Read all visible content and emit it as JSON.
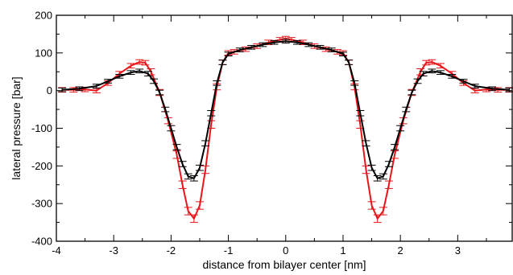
{
  "chart_data": {
    "type": "line",
    "title": "",
    "xlabel": "distance from bilayer center [nm]",
    "ylabel": "lateral pressure [bar]",
    "xlim": [
      -4,
      3.95
    ],
    "ylim": [
      -400,
      200
    ],
    "xticks": [
      -4,
      -3,
      -2,
      -1,
      0,
      1,
      2,
      3
    ],
    "xtick_labels": [
      "-4",
      "-3",
      "-2",
      "-1",
      "0",
      "1",
      "2",
      "3"
    ],
    "yticks": [
      -400,
      -300,
      -200,
      -100,
      0,
      100,
      200
    ],
    "ytick_labels": [
      "-400",
      "-300",
      "-200",
      "-100",
      "0",
      "100",
      "200"
    ],
    "grid": false,
    "legend": "none",
    "error_bars": true,
    "series": [
      {
        "color": "#e8161b",
        "x": [
          -3.9,
          -3.7,
          -3.5,
          -3.3,
          -3.1,
          -2.9,
          -2.7,
          -2.55,
          -2.45,
          -2.35,
          -2.2,
          -2.05,
          -1.9,
          -1.8,
          -1.7,
          -1.6,
          -1.5,
          -1.4,
          -1.3,
          -1.2,
          -1.1,
          -1.0,
          -0.9,
          -0.7,
          -0.5,
          -0.3,
          -0.1,
          0.0,
          0.1,
          0.3,
          0.5,
          0.7,
          0.9,
          1.0,
          1.1,
          1.2,
          1.3,
          1.4,
          1.5,
          1.6,
          1.7,
          1.8,
          1.9,
          2.05,
          2.2,
          2.35,
          2.45,
          2.55,
          2.7,
          2.9,
          3.1,
          3.3,
          3.5,
          3.7,
          3.9
        ],
        "y": [
          2,
          2,
          3,
          0,
          20,
          45,
          66,
          76,
          74,
          50,
          -5,
          -80,
          -170,
          -250,
          -320,
          -340,
          -305,
          -210,
          -90,
          10,
          75,
          100,
          103,
          110,
          118,
          128,
          135,
          138,
          135,
          128,
          118,
          110,
          103,
          100,
          75,
          10,
          -90,
          -210,
          -305,
          -340,
          -320,
          -250,
          -170,
          -80,
          -5,
          50,
          74,
          76,
          66,
          45,
          20,
          0,
          3,
          2,
          2
        ],
        "err": [
          6,
          6,
          6,
          6,
          6,
          6,
          6,
          6,
          6,
          8,
          8,
          8,
          10,
          10,
          10,
          10,
          10,
          10,
          10,
          8,
          6,
          6,
          6,
          6,
          6,
          6,
          6,
          6,
          6,
          6,
          6,
          6,
          6,
          6,
          6,
          8,
          10,
          10,
          10,
          10,
          10,
          10,
          10,
          8,
          8,
          8,
          6,
          6,
          6,
          6,
          6,
          6,
          6,
          6,
          6
        ]
      },
      {
        "color": "#000000",
        "x": [
          -3.9,
          -3.6,
          -3.3,
          -3.1,
          -2.9,
          -2.7,
          -2.55,
          -2.4,
          -2.3,
          -2.2,
          -2.1,
          -2.0,
          -1.9,
          -1.8,
          -1.7,
          -1.6,
          -1.5,
          -1.4,
          -1.3,
          -1.2,
          -1.1,
          -1.0,
          -0.8,
          -0.6,
          -0.4,
          -0.2,
          0.0,
          0.2,
          0.4,
          0.6,
          0.8,
          1.0,
          1.1,
          1.2,
          1.3,
          1.4,
          1.5,
          1.6,
          1.7,
          1.8,
          1.9,
          2.0,
          2.1,
          2.2,
          2.3,
          2.4,
          2.55,
          2.7,
          2.9,
          3.1,
          3.3,
          3.6,
          3.9
        ],
        "y": [
          2,
          5,
          12,
          25,
          38,
          48,
          52,
          45,
          25,
          -5,
          -50,
          -100,
          -150,
          -195,
          -228,
          -233,
          -205,
          -140,
          -60,
          20,
          75,
          97,
          108,
          115,
          122,
          128,
          131,
          128,
          122,
          115,
          108,
          97,
          75,
          20,
          -60,
          -140,
          -205,
          -233,
          -228,
          -195,
          -150,
          -100,
          -50,
          -5,
          25,
          45,
          52,
          48,
          38,
          25,
          12,
          5,
          2
        ],
        "err": [
          5,
          5,
          5,
          5,
          5,
          5,
          5,
          6,
          6,
          6,
          6,
          7,
          7,
          7,
          7,
          7,
          7,
          7,
          7,
          6,
          6,
          5,
          5,
          5,
          5,
          5,
          5,
          5,
          5,
          5,
          5,
          5,
          6,
          6,
          7,
          7,
          7,
          7,
          7,
          7,
          7,
          7,
          6,
          6,
          6,
          6,
          5,
          5,
          5,
          5,
          5,
          5,
          5
        ]
      }
    ]
  }
}
